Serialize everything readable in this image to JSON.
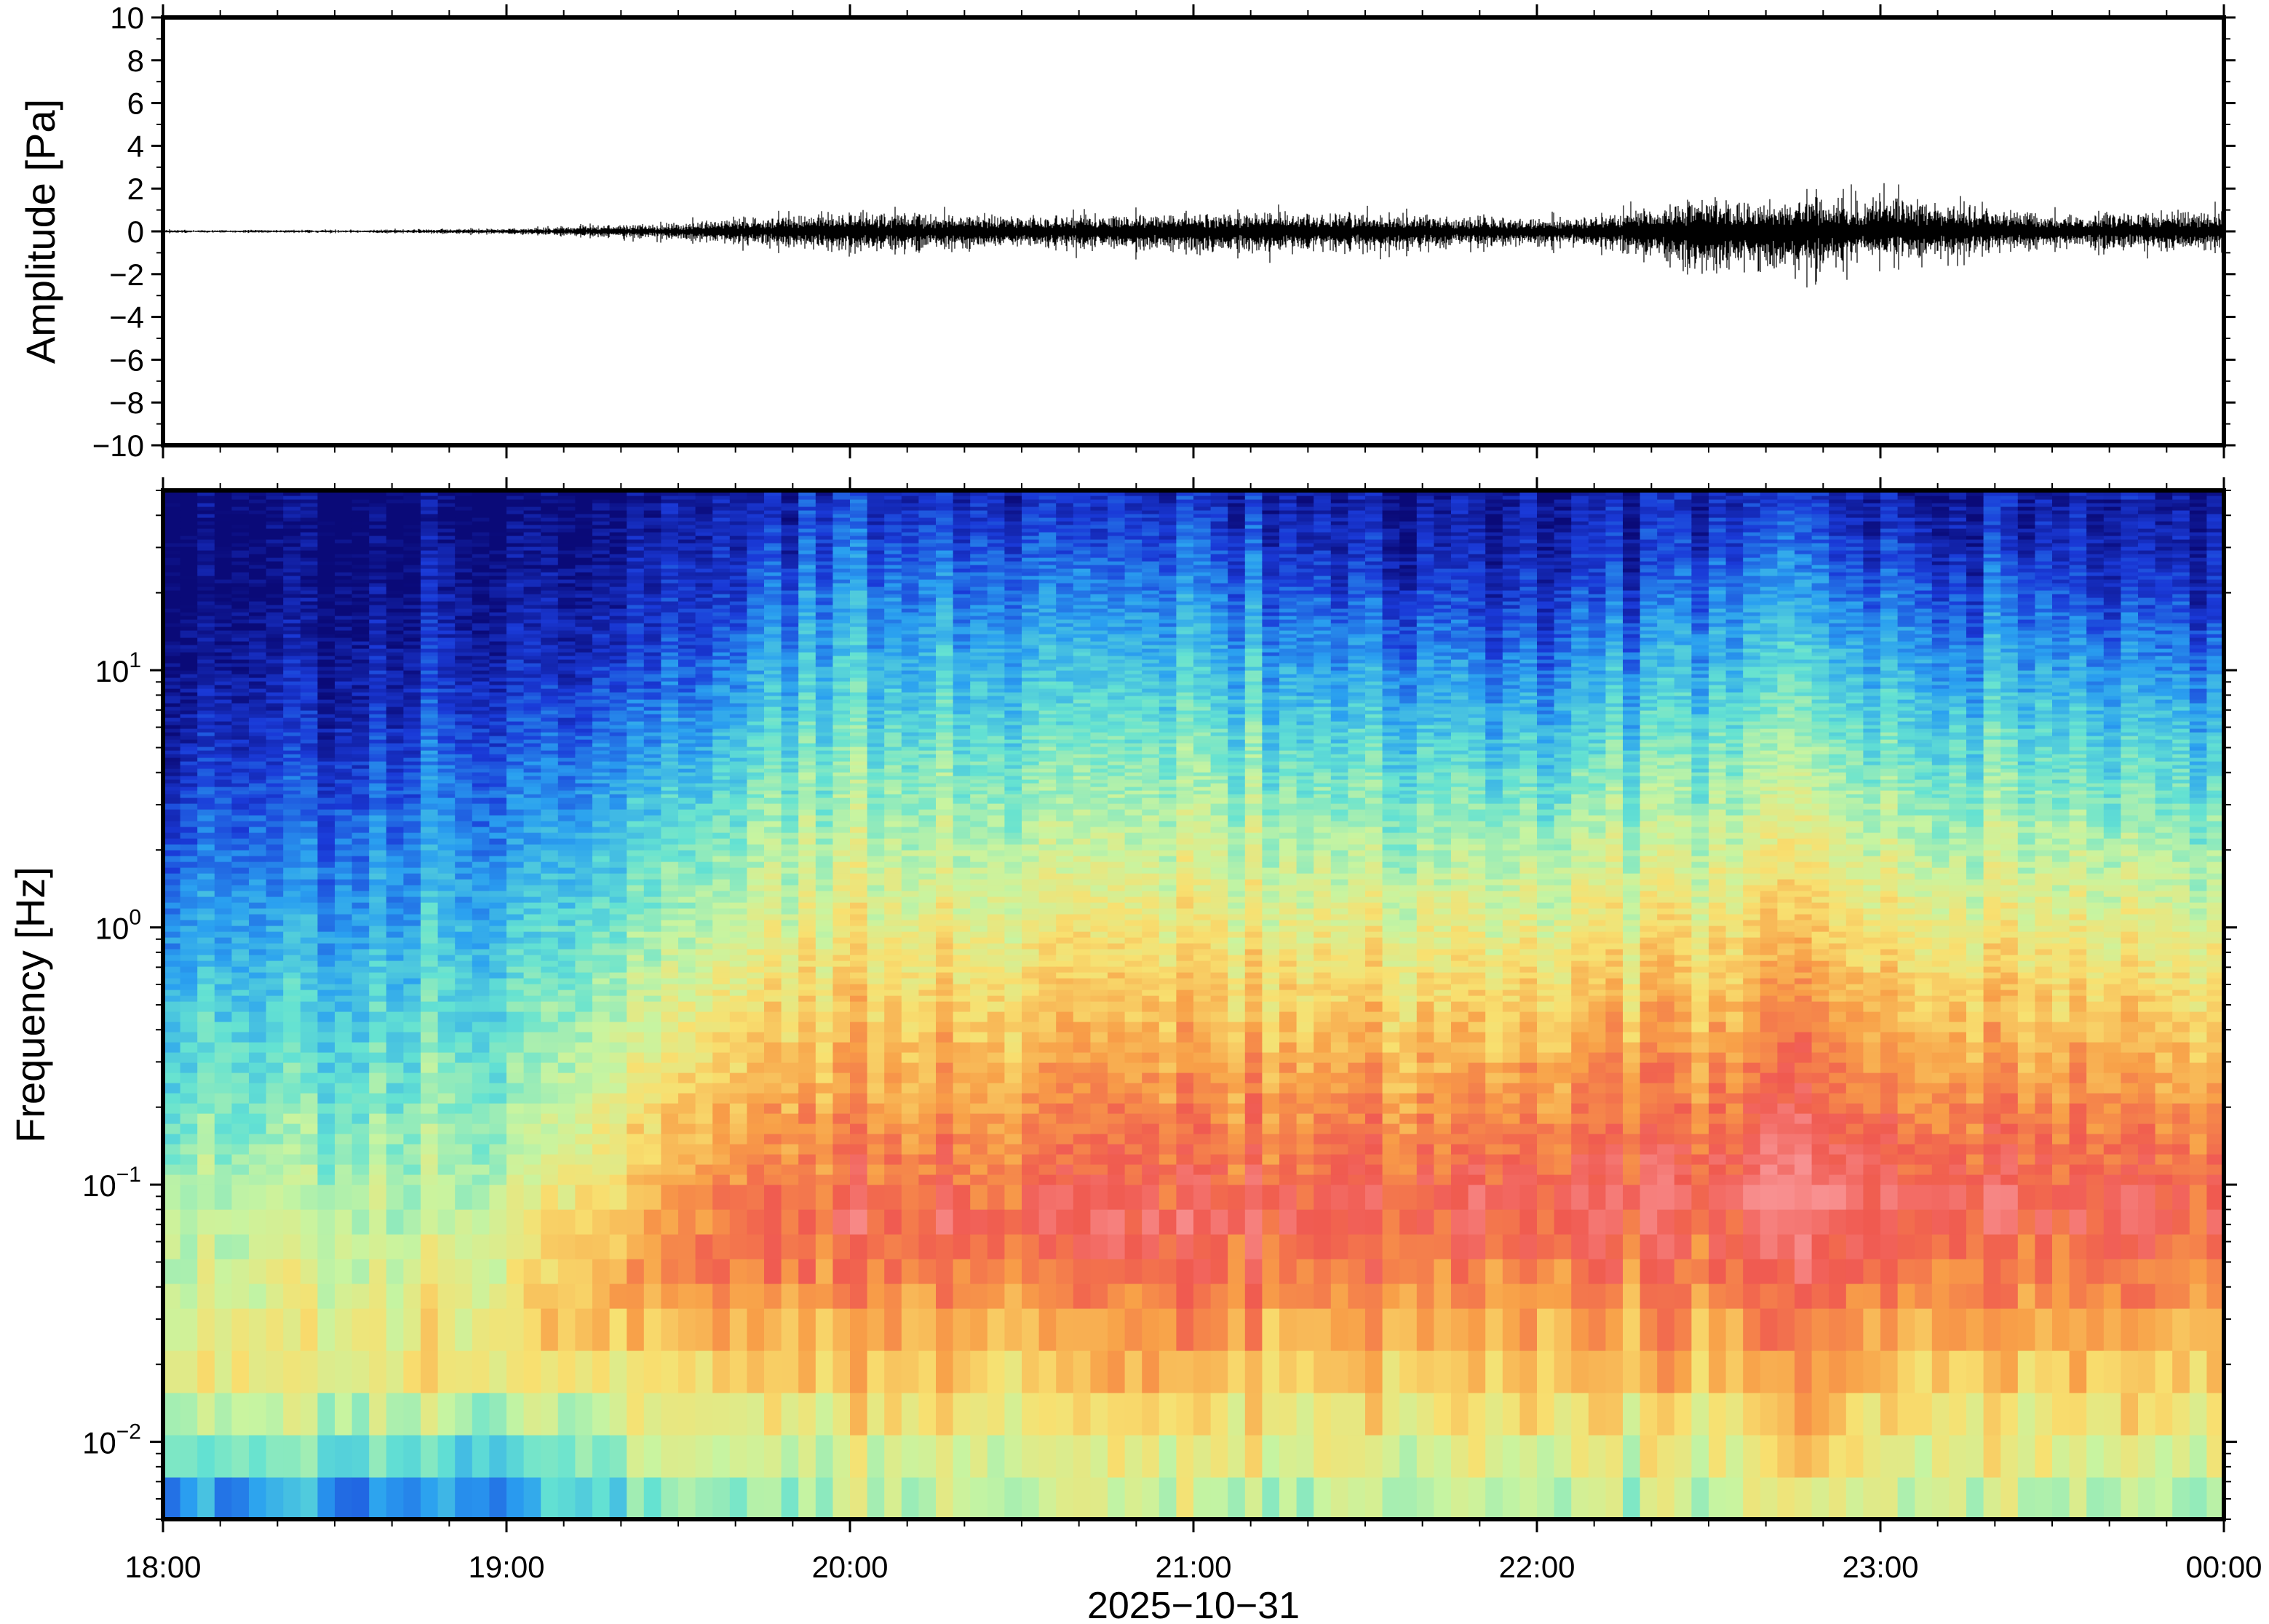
{
  "chart_data": [
    {
      "type": "line",
      "panel": "waveform",
      "ylabel": "Amplitude [Pa]",
      "ylim": [
        -10,
        10
      ],
      "yticks": [
        10,
        8,
        6,
        4,
        2,
        0,
        -2,
        -4,
        -6,
        -8,
        -10
      ],
      "ytick_labels": [
        "10",
        "8",
        "6",
        "4",
        "2",
        "0",
        "−2",
        "−4",
        "−6",
        "−8",
        "−10"
      ],
      "xlim": [
        "18:00",
        "00:00"
      ],
      "envelope": {
        "time": [
          "18:00",
          "18:30",
          "19:00",
          "19:15",
          "19:30",
          "19:40",
          "20:00",
          "20:30",
          "21:00",
          "21:30",
          "22:00",
          "22:15",
          "22:30",
          "22:45",
          "23:00",
          "23:30",
          "00:00"
        ],
        "max": [
          0.1,
          0.1,
          0.2,
          0.4,
          0.6,
          1.0,
          1.4,
          1.1,
          1.4,
          1.3,
          0.9,
          1.3,
          2.5,
          2.0,
          2.5,
          1.2,
          1.5
        ],
        "min": [
          -0.1,
          -0.1,
          -0.2,
          -0.4,
          -0.6,
          -1.0,
          -1.5,
          -1.2,
          -1.6,
          -1.5,
          -1.0,
          -1.4,
          -3.2,
          -2.8,
          -2.0,
          -1.2,
          -1.5
        ]
      },
      "series_color": "#000000"
    },
    {
      "type": "heatmap",
      "panel": "spectrogram",
      "ylabel": "Frequency [Hz]",
      "yscale": "log",
      "ylim": [
        0.005,
        50
      ],
      "yticks": [
        10,
        1,
        0.1,
        0.01
      ],
      "ytick_labels": [
        {
          "base": "10",
          "exp": "1"
        },
        {
          "base": "10",
          "exp": "0"
        },
        {
          "base": "10",
          "exp": "−1"
        },
        {
          "base": "10",
          "exp": "−2"
        }
      ],
      "xlabel": "2025−10−31",
      "xticks": [
        "18:00",
        "19:00",
        "20:00",
        "21:00",
        "22:00",
        "23:00",
        "00:00"
      ],
      "colormap": "rainbow",
      "colors": [
        "#0a0a78",
        "#1a3ad8",
        "#2aa0f0",
        "#64e2d2",
        "#c8f4a0",
        "#f8e070",
        "#f8a048",
        "#f05a50",
        "#f89090"
      ],
      "time_hours": [
        0.0,
        0.5,
        1.0,
        1.2,
        1.6,
        1.75,
        2.0,
        2.5,
        3.0,
        3.5,
        4.0,
        4.5,
        4.75,
        5.0,
        5.5,
        6.0
      ],
      "noise_floor_log10_hz": [
        0.6,
        0.8,
        1.0,
        1.0,
        1.2,
        1.5,
        1.7,
        1.6,
        1.6,
        1.4,
        1.3,
        1.5,
        1.6,
        1.6,
        1.4,
        1.3
      ],
      "peak_log10_hz": [
        -1.75,
        -1.75,
        -1.7,
        -1.5,
        -1.25,
        -1.2,
        -1.15,
        -1.15,
        -1.15,
        -1.1,
        -1.05,
        -1.05,
        -1.05,
        -1.05,
        -1.1,
        -1.1
      ],
      "peak_level": [
        0.62,
        0.6,
        0.62,
        0.72,
        0.8,
        0.86,
        0.88,
        0.88,
        0.9,
        0.9,
        0.88,
        0.92,
        0.96,
        0.94,
        0.9,
        0.88
      ]
    }
  ]
}
